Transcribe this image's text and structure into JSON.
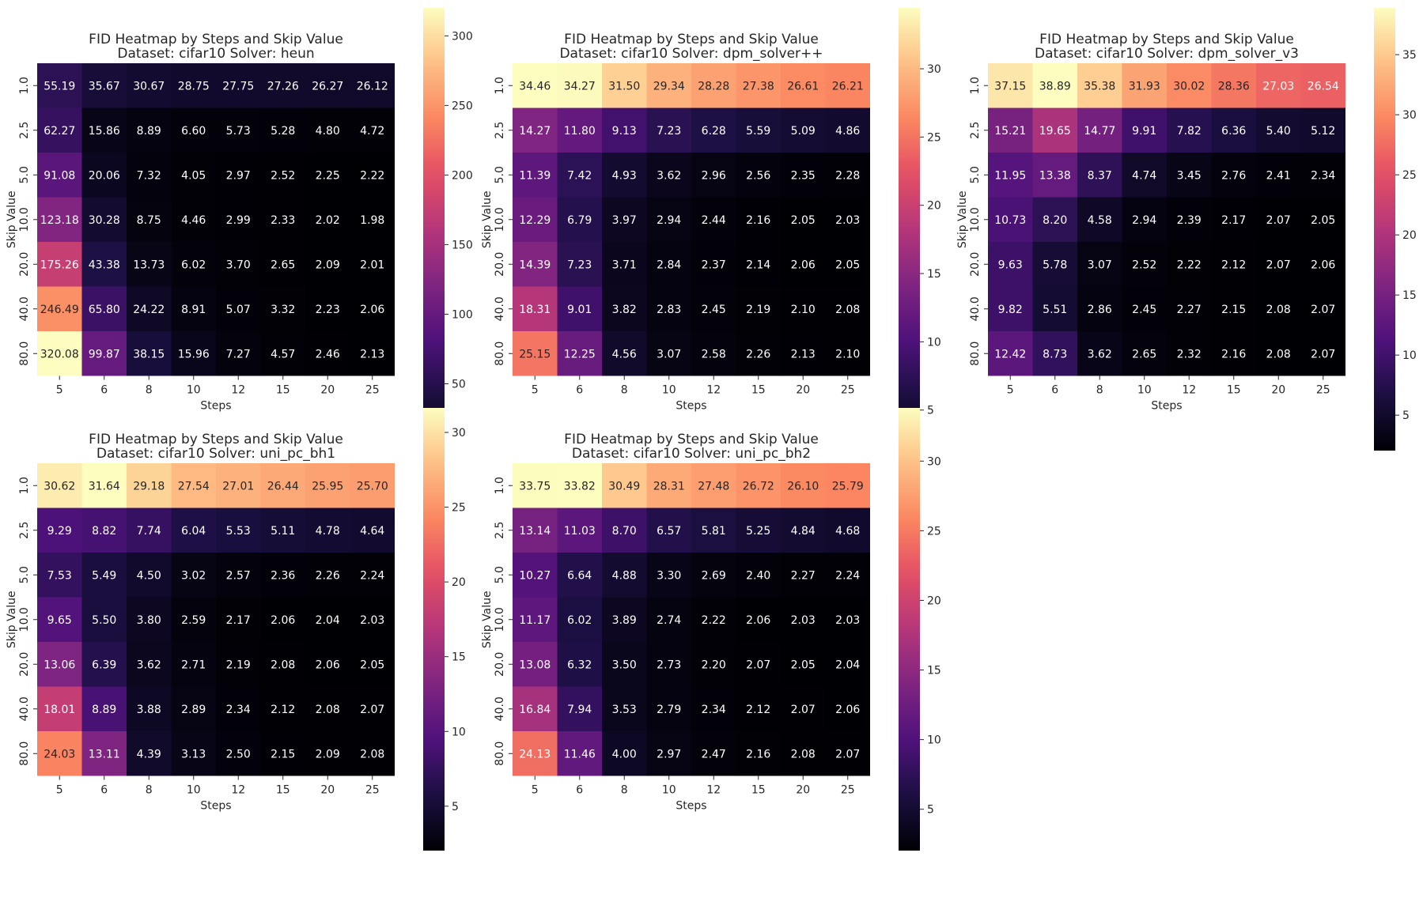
{
  "chart_data": [
    {
      "type": "heatmap",
      "title_line1": "FID Heatmap by Steps and Skip Value",
      "title_line2": "Dataset: cifar10 Solver: heun",
      "xlabel": "Steps",
      "ylabel": "Skip Value",
      "x": [
        "5",
        "6",
        "8",
        "10",
        "12",
        "15",
        "20",
        "25"
      ],
      "y": [
        "1.0",
        "2.5",
        "5.0",
        "10.0",
        "20.0",
        "40.0",
        "80.0"
      ],
      "values": [
        [
          55.19,
          35.67,
          30.67,
          28.75,
          27.75,
          27.26,
          26.27,
          26.12
        ],
        [
          62.27,
          15.86,
          8.89,
          6.6,
          5.73,
          5.28,
          4.8,
          4.72
        ],
        [
          91.08,
          20.06,
          7.32,
          4.05,
          2.97,
          2.52,
          2.25,
          2.22
        ],
        [
          123.18,
          30.28,
          8.75,
          4.46,
          2.99,
          2.33,
          2.02,
          1.98
        ],
        [
          175.26,
          43.38,
          13.73,
          6.02,
          3.7,
          2.65,
          2.09,
          2.01
        ],
        [
          246.49,
          65.8,
          24.22,
          8.91,
          5.07,
          3.32,
          2.23,
          2.06
        ],
        [
          320.08,
          99.87,
          38.15,
          15.96,
          7.27,
          4.57,
          2.46,
          2.13
        ]
      ],
      "vmin": 1.98,
      "vmax": 320.08,
      "colorbar_ticks": [
        "50",
        "100",
        "150",
        "200",
        "250",
        "300"
      ],
      "colormap": "magma"
    },
    {
      "type": "heatmap",
      "title_line1": "FID Heatmap by Steps and Skip Value",
      "title_line2": "Dataset: cifar10 Solver: dpm_solver++",
      "xlabel": "Steps",
      "ylabel": "Skip Value",
      "x": [
        "5",
        "6",
        "8",
        "10",
        "12",
        "15",
        "20",
        "25"
      ],
      "y": [
        "1.0",
        "2.5",
        "5.0",
        "10.0",
        "20.0",
        "40.0",
        "80.0"
      ],
      "values": [
        [
          34.46,
          34.27,
          31.5,
          29.34,
          28.28,
          27.38,
          26.61,
          26.21
        ],
        [
          14.27,
          11.8,
          9.13,
          7.23,
          6.28,
          5.59,
          5.09,
          4.86
        ],
        [
          11.39,
          7.42,
          4.93,
          3.62,
          2.96,
          2.56,
          2.35,
          2.28
        ],
        [
          12.29,
          6.79,
          3.97,
          2.94,
          2.44,
          2.16,
          2.05,
          2.03
        ],
        [
          14.39,
          7.23,
          3.71,
          2.84,
          2.37,
          2.14,
          2.06,
          2.05
        ],
        [
          18.31,
          9.01,
          3.82,
          2.83,
          2.45,
          2.19,
          2.1,
          2.08
        ],
        [
          25.15,
          12.25,
          4.56,
          3.07,
          2.58,
          2.26,
          2.13,
          2.1
        ]
      ],
      "vmin": 2.03,
      "vmax": 34.46,
      "colorbar_ticks": [
        "5",
        "10",
        "15",
        "20",
        "25",
        "30"
      ],
      "colormap": "magma"
    },
    {
      "type": "heatmap",
      "title_line1": "FID Heatmap by Steps and Skip Value",
      "title_line2": "Dataset: cifar10 Solver: dpm_solver_v3",
      "xlabel": "Steps",
      "ylabel": "Skip Value",
      "x": [
        "5",
        "6",
        "8",
        "10",
        "12",
        "15",
        "20",
        "25"
      ],
      "y": [
        "1.0",
        "2.5",
        "5.0",
        "10.0",
        "20.0",
        "40.0",
        "80.0"
      ],
      "values": [
        [
          37.15,
          38.89,
          35.38,
          31.93,
          30.02,
          28.36,
          27.03,
          26.54
        ],
        [
          15.21,
          19.65,
          14.77,
          9.91,
          7.82,
          6.36,
          5.4,
          5.12
        ],
        [
          11.95,
          13.38,
          8.37,
          4.74,
          3.45,
          2.76,
          2.41,
          2.34
        ],
        [
          10.73,
          8.2,
          4.58,
          2.94,
          2.39,
          2.17,
          2.07,
          2.05
        ],
        [
          9.63,
          5.78,
          3.07,
          2.52,
          2.22,
          2.12,
          2.07,
          2.06
        ],
        [
          9.82,
          5.51,
          2.86,
          2.45,
          2.27,
          2.15,
          2.08,
          2.07
        ],
        [
          12.42,
          8.73,
          3.62,
          2.65,
          2.32,
          2.16,
          2.08,
          2.07
        ]
      ],
      "vmin": 2.05,
      "vmax": 38.89,
      "colorbar_ticks": [
        "5",
        "10",
        "15",
        "20",
        "25",
        "30",
        "35"
      ],
      "colormap": "magma"
    },
    {
      "type": "heatmap",
      "title_line1": "FID Heatmap by Steps and Skip Value",
      "title_line2": "Dataset: cifar10 Solver: uni_pc_bh1",
      "xlabel": "Steps",
      "ylabel": "Skip Value",
      "x": [
        "5",
        "6",
        "8",
        "10",
        "12",
        "15",
        "20",
        "25"
      ],
      "y": [
        "1.0",
        "2.5",
        "5.0",
        "10.0",
        "20.0",
        "40.0",
        "80.0"
      ],
      "values": [
        [
          30.62,
          31.64,
          29.18,
          27.54,
          27.01,
          26.44,
          25.95,
          25.7
        ],
        [
          9.29,
          8.82,
          7.74,
          6.04,
          5.53,
          5.11,
          4.78,
          4.64
        ],
        [
          7.53,
          5.49,
          4.5,
          3.02,
          2.57,
          2.36,
          2.26,
          2.24
        ],
        [
          9.65,
          5.5,
          3.8,
          2.59,
          2.17,
          2.06,
          2.04,
          2.03
        ],
        [
          13.06,
          6.39,
          3.62,
          2.71,
          2.19,
          2.08,
          2.06,
          2.05
        ],
        [
          18.01,
          8.89,
          3.88,
          2.89,
          2.34,
          2.12,
          2.08,
          2.07
        ],
        [
          24.03,
          13.11,
          4.39,
          3.13,
          2.5,
          2.15,
          2.09,
          2.08
        ]
      ],
      "vmin": 2.03,
      "vmax": 31.64,
      "colorbar_ticks": [
        "5",
        "10",
        "15",
        "20",
        "25",
        "30"
      ],
      "colormap": "magma"
    },
    {
      "type": "heatmap",
      "title_line1": "FID Heatmap by Steps and Skip Value",
      "title_line2": "Dataset: cifar10 Solver: uni_pc_bh2",
      "xlabel": "Steps",
      "ylabel": "Skip Value",
      "x": [
        "5",
        "6",
        "8",
        "10",
        "12",
        "15",
        "20",
        "25"
      ],
      "y": [
        "1.0",
        "2.5",
        "5.0",
        "10.0",
        "20.0",
        "40.0",
        "80.0"
      ],
      "values": [
        [
          33.75,
          33.82,
          30.49,
          28.31,
          27.48,
          26.72,
          26.1,
          25.79
        ],
        [
          13.14,
          11.03,
          8.7,
          6.57,
          5.81,
          5.25,
          4.84,
          4.68
        ],
        [
          10.27,
          6.64,
          4.88,
          3.3,
          2.69,
          2.4,
          2.27,
          2.24
        ],
        [
          11.17,
          6.02,
          3.89,
          2.74,
          2.22,
          2.06,
          2.03,
          2.03
        ],
        [
          13.08,
          6.32,
          3.5,
          2.73,
          2.2,
          2.07,
          2.05,
          2.04
        ],
        [
          16.84,
          7.94,
          3.53,
          2.79,
          2.34,
          2.12,
          2.07,
          2.06
        ],
        [
          24.13,
          11.46,
          4.0,
          2.97,
          2.47,
          2.16,
          2.08,
          2.07
        ]
      ],
      "vmin": 2.03,
      "vmax": 33.82,
      "colorbar_ticks": [
        "5",
        "10",
        "15",
        "20",
        "25",
        "30"
      ],
      "colormap": "magma"
    }
  ]
}
